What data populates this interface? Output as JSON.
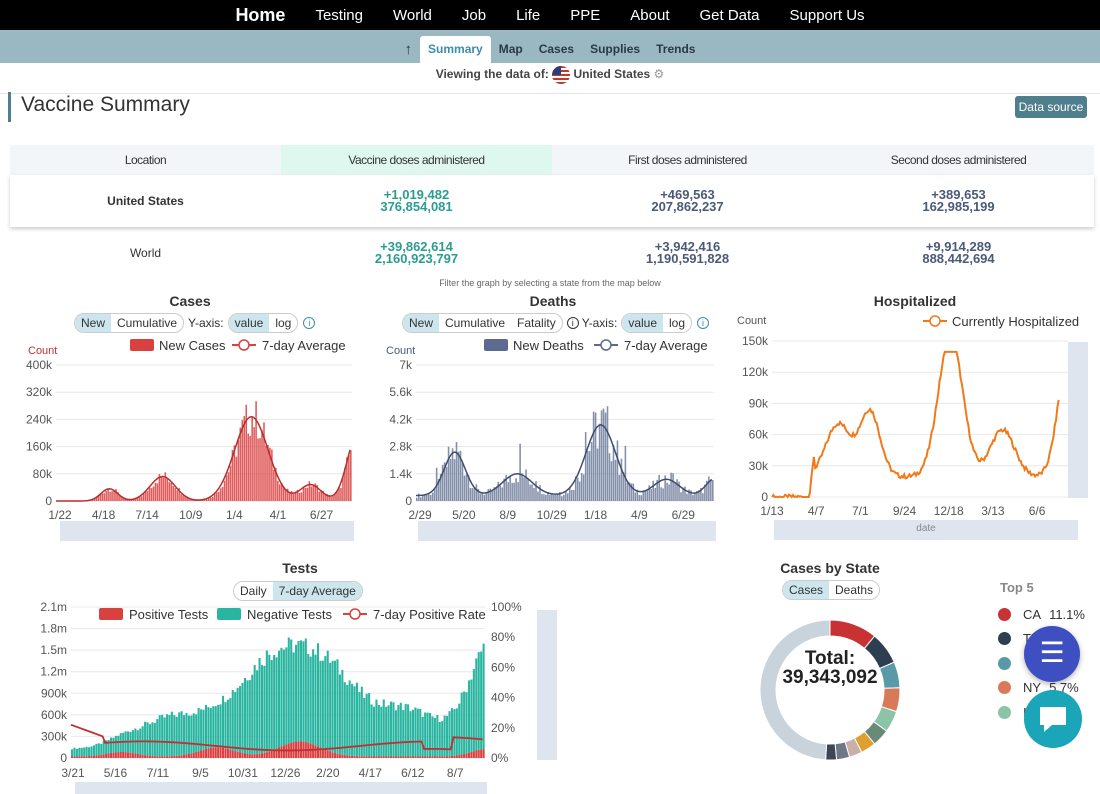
{
  "nav": {
    "items": [
      "Home",
      "Testing",
      "World",
      "Job",
      "Life",
      "PPE",
      "About",
      "Get Data",
      "Support Us"
    ]
  },
  "subnav": {
    "up_icon": "up-arrow-icon",
    "items": [
      "Summary",
      "Map",
      "Cases",
      "Supplies",
      "Trends"
    ],
    "active": "Summary"
  },
  "viewing": {
    "label": "Viewing the data of:",
    "country": "United States"
  },
  "page": {
    "title": "Vaccine Summary",
    "data_source": "Data source"
  },
  "vaccine_table": {
    "headers": [
      "Location",
      "Vaccine doses administered",
      "First doses administered",
      "Second doses administered"
    ],
    "rows": [
      {
        "location": "United States",
        "doses_new": "+1,019,482",
        "doses_total": "376,854,081",
        "first_new": "+469,563",
        "first_total": "207,862,237",
        "second_new": "+389,653",
        "second_total": "162,985,199"
      },
      {
        "location": "World",
        "doses_new": "+39,862,614",
        "doses_total": "2,160,923,797",
        "first_new": "+3,942,416",
        "first_total": "1,190,591,828",
        "second_new": "+9,914,289",
        "second_total": "888,442,694"
      }
    ]
  },
  "filter_hint": "Filter the graph by selecting a state from the map below",
  "cases_chart": {
    "title": "Cases",
    "toggle": [
      "New",
      "Cumulative"
    ],
    "yaxis_label": "Y-axis:",
    "scale": [
      "value",
      "log"
    ],
    "count_label": "Count",
    "legend": [
      "New Cases",
      "7-day Average"
    ],
    "yticks": [
      "0",
      "80k",
      "160k",
      "240k",
      "320k",
      "400k"
    ],
    "xticks": [
      "1/22",
      "4/18",
      "7/14",
      "10/9",
      "1/4",
      "4/1",
      "6/27"
    ],
    "color": "#d94040"
  },
  "deaths_chart": {
    "title": "Deaths",
    "toggle": [
      "New",
      "Cumulative",
      "Fatality"
    ],
    "yaxis_label": "Y-axis:",
    "scale": [
      "value",
      "log"
    ],
    "count_label": "Count",
    "legend": [
      "New Deaths",
      "7-day Average"
    ],
    "yticks": [
      "0",
      "1.4k",
      "2.8k",
      "4.2k",
      "5.6k",
      "7k"
    ],
    "xticks": [
      "2/29",
      "5/20",
      "8/9",
      "10/29",
      "1/18",
      "4/9",
      "6/29"
    ],
    "color": "#5c6b8f"
  },
  "hosp_chart": {
    "title": "Hospitalized",
    "count_label": "Count",
    "legend": [
      "Currently Hospitalized"
    ],
    "yticks": [
      "0",
      "30k",
      "60k",
      "90k",
      "120k",
      "150k"
    ],
    "xticks": [
      "1/13",
      "4/7",
      "7/1",
      "9/24",
      "12/18",
      "3/13",
      "6/6"
    ],
    "xlabel": "date",
    "color": "#f07a1a"
  },
  "tests_chart": {
    "title": "Tests",
    "toggle": [
      "Daily",
      "7-day Average"
    ],
    "legend": [
      "Positive Tests",
      "Negative Tests",
      "7-day Positive Rate"
    ],
    "yticks": [
      "0",
      "300k",
      "600k",
      "900k",
      "1.2m",
      "1.5m",
      "1.8m",
      "2.1m"
    ],
    "y2ticks": [
      "0%",
      "20%",
      "40%",
      "60%",
      "80%",
      "100%"
    ],
    "xticks": [
      "3/21",
      "5/16",
      "7/11",
      "9/5",
      "10/31",
      "12/26",
      "2/20",
      "4/17",
      "6/12",
      "8/7"
    ],
    "colors": {
      "positive": "#d94040",
      "negative": "#2ab5a0"
    }
  },
  "state_chart": {
    "title": "Cases by State",
    "toggle": [
      "Cases",
      "Deaths"
    ],
    "total_label": "Total:",
    "total_value": "39,343,092",
    "top5_title": "Top 5",
    "top5": [
      {
        "state": "CA",
        "pct": "11.1%",
        "color": "#c83232"
      },
      {
        "state": "TX",
        "pct": "",
        "color": "#2c3e50"
      },
      {
        "state": "",
        "pct": "",
        "color": "#5a9aa8"
      },
      {
        "state": "NY",
        "pct": "5.7%",
        "color": "#d87a5a"
      },
      {
        "state": "IL",
        "pct": "",
        "color": "#8cc4a8"
      }
    ]
  },
  "fab": {
    "menu_icon": "menu-icon",
    "chat_icon": "chat-icon"
  }
}
